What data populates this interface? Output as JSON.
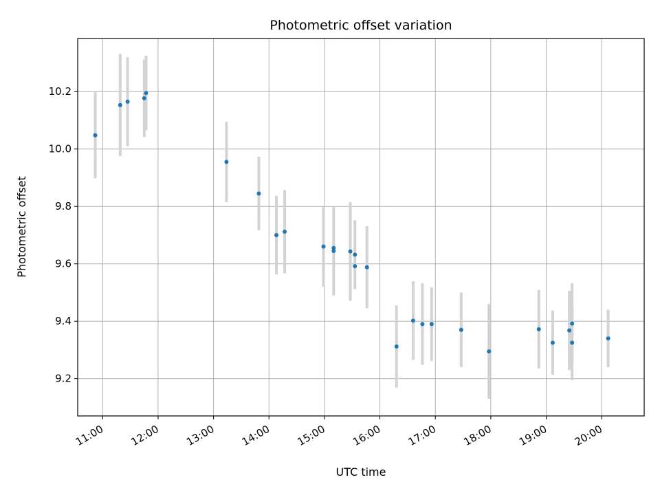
{
  "chart_data": {
    "type": "scatter",
    "title": "Photometric offset variation",
    "xlabel": "UTC time",
    "ylabel": "Photometric offset",
    "x_tick_labels": [
      "11:00",
      "12:00",
      "13:00",
      "14:00",
      "15:00",
      "16:00",
      "17:00",
      "18:00",
      "19:00",
      "20:00"
    ],
    "y_tick_labels": [
      "9.2",
      "9.4",
      "9.6",
      "9.8",
      "10.0",
      "10.2"
    ],
    "xlim": [
      "10:33",
      "20:46"
    ],
    "ylim": [
      9.07,
      10.385
    ],
    "grid": true,
    "colors": {
      "points": "#1f77b4",
      "errorbars": "#d3d3d3",
      "grid": "#b0b0b0"
    },
    "points": [
      {
        "x": "10:52",
        "y": 10.048,
        "err": 0.15
      },
      {
        "x": "11:19",
        "y": 10.153,
        "err": 0.178
      },
      {
        "x": "11:27",
        "y": 10.165,
        "err": 0.155
      },
      {
        "x": "11:45",
        "y": 10.177,
        "err": 0.135
      },
      {
        "x": "11:47",
        "y": 10.195,
        "err": 0.13
      },
      {
        "x": "13:14",
        "y": 9.955,
        "err": 0.14
      },
      {
        "x": "13:49",
        "y": 9.845,
        "err": 0.128
      },
      {
        "x": "14:08",
        "y": 9.7,
        "err": 0.137
      },
      {
        "x": "14:17",
        "y": 9.712,
        "err": 0.145
      },
      {
        "x": "14:59",
        "y": 9.66,
        "err": 0.14
      },
      {
        "x": "15:10",
        "y": 9.645,
        "err": 0.155
      },
      {
        "x": "15:10",
        "y": 9.655,
        "err": 0.0
      },
      {
        "x": "15:28",
        "y": 9.643,
        "err": 0.172
      },
      {
        "x": "15:33",
        "y": 9.632,
        "err": 0.12
      },
      {
        "x": "15:33",
        "y": 9.592,
        "err": 0.0
      },
      {
        "x": "15:46",
        "y": 9.588,
        "err": 0.143
      },
      {
        "x": "16:18",
        "y": 9.312,
        "err": 0.143
      },
      {
        "x": "16:36",
        "y": 9.402,
        "err": 0.137
      },
      {
        "x": "16:46",
        "y": 9.39,
        "err": 0.142
      },
      {
        "x": "16:56",
        "y": 9.39,
        "err": 0.128
      },
      {
        "x": "17:28",
        "y": 9.37,
        "err": 0.13
      },
      {
        "x": "17:58",
        "y": 9.295,
        "err": 0.165
      },
      {
        "x": "18:52",
        "y": 9.372,
        "err": 0.137
      },
      {
        "x": "19:07",
        "y": 9.325,
        "err": 0.112
      },
      {
        "x": "19:25",
        "y": 9.368,
        "err": 0.138
      },
      {
        "x": "19:28",
        "y": 9.392,
        "err": 0.14
      },
      {
        "x": "19:28",
        "y": 9.325,
        "err": 0.13
      },
      {
        "x": "20:07",
        "y": 9.34,
        "err": 0.1
      }
    ]
  }
}
